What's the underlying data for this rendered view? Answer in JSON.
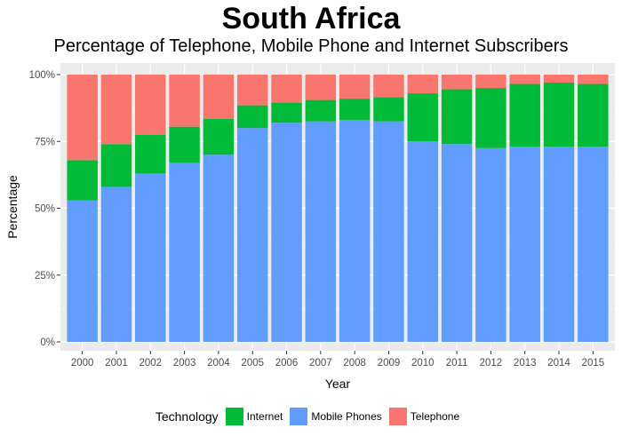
{
  "chart_data": {
    "type": "bar",
    "stacked": true,
    "title": "South Africa",
    "subtitle": "Percentage of Telephone, Mobile Phone and Internet Subscribers",
    "xlabel": "Year",
    "ylabel": "Percentage",
    "ylim": [
      0,
      100
    ],
    "yticks": [
      "0%",
      "25%",
      "50%",
      "75%",
      "100%"
    ],
    "categories": [
      "2000",
      "2001",
      "2002",
      "2003",
      "2004",
      "2005",
      "2006",
      "2007",
      "2008",
      "2009",
      "2010",
      "2011",
      "2012",
      "2013",
      "2014",
      "2015"
    ],
    "legend_title": "Technology",
    "legend_position": "bottom",
    "series": [
      {
        "name": "Mobile Phones",
        "color": "#619CFF",
        "values": [
          53,
          58,
          63,
          67,
          70,
          80,
          82,
          82.5,
          83,
          82.5,
          75,
          74,
          72.5,
          73,
          73,
          73
        ]
      },
      {
        "name": "Internet",
        "color": "#00BA38",
        "values": [
          15,
          16,
          14.5,
          13.5,
          13.5,
          8.5,
          7.5,
          8,
          8,
          9,
          18,
          20.5,
          22.5,
          23.5,
          24,
          23.5
        ]
      },
      {
        "name": "Telephone",
        "color": "#F8766D",
        "values": [
          32,
          26,
          22.5,
          19.5,
          16.5,
          11.5,
          10.5,
          9.5,
          9,
          8.5,
          7,
          5.5,
          5,
          3.5,
          3,
          3.5
        ]
      }
    ],
    "legend_order": [
      "Internet",
      "Mobile Phones",
      "Telephone"
    ]
  }
}
